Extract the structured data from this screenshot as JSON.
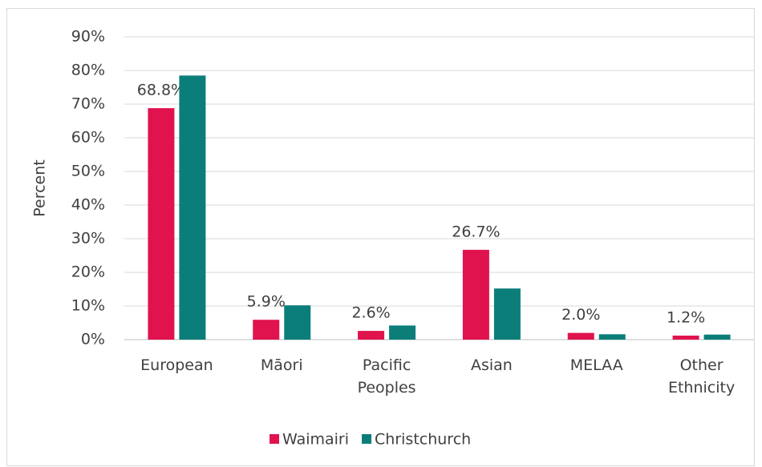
{
  "chart_data": {
    "type": "bar",
    "y_label": "Percent",
    "categories": [
      "European",
      "Māori",
      "Pacific Peoples",
      "Asian",
      "MELAA",
      "Other Ethnicity"
    ],
    "series": [
      {
        "name": "Waimairi",
        "color": "#e0134f",
        "values": [
          68.8,
          5.9,
          2.6,
          26.7,
          2.0,
          1.2
        ],
        "value_labels": [
          "68.8%",
          "5.9%",
          "2.6%",
          "26.7%",
          "2.0%",
          "1.2%"
        ]
      },
      {
        "name": "Christchurch",
        "color": "#0b7e7a",
        "values": [
          78.5,
          10.2,
          4.2,
          15.2,
          1.6,
          1.5
        ]
      }
    ],
    "ylim": [
      0,
      90
    ],
    "yticks": [
      {
        "value": 0,
        "label": "0%"
      },
      {
        "value": 10,
        "label": "10%"
      },
      {
        "value": 20,
        "label": "20%"
      },
      {
        "value": 30,
        "label": "30%"
      },
      {
        "value": 40,
        "label": "40%"
      },
      {
        "value": 50,
        "label": "50%"
      },
      {
        "value": 60,
        "label": "60%"
      },
      {
        "value": 70,
        "label": "70%"
      },
      {
        "value": 80,
        "label": "80%"
      },
      {
        "value": 90,
        "label": "90%"
      }
    ],
    "grid": true,
    "legend": "bottom"
  }
}
